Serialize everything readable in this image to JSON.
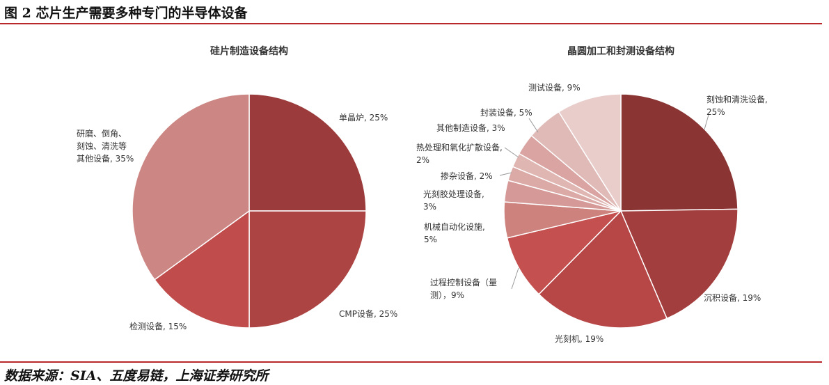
{
  "figure": {
    "title": "图 2 芯片生产需要多种专门的半导体设备",
    "source": "数据来源：SIA、五度易链，上海证券研究所"
  },
  "chart_data": [
    {
      "type": "pie",
      "title": "硅片制造设备结构",
      "slices": [
        {
          "label": [
            "单晶炉, 25%"
          ],
          "value": 25,
          "color": "#9b3b3b"
        },
        {
          "label": [
            "CMP设备, 25%"
          ],
          "value": 25,
          "color": "#ad4444"
        },
        {
          "label": [
            "检测设备, 15%"
          ],
          "value": 15,
          "color": "#c04c4c"
        },
        {
          "label": [
            "研磨、倒角、",
            "刻蚀、清洗等",
            "其他设备, 35%"
          ],
          "value": 35,
          "color": "#cc8784"
        }
      ]
    },
    {
      "type": "pie",
      "title": "晶圆加工和封测设备结构",
      "slices": [
        {
          "label": [
            "刻蚀和清洗设备,",
            "25%"
          ],
          "value": 25,
          "color": "#8b3434"
        },
        {
          "label": [
            "沉积设备, 19%"
          ],
          "value": 19,
          "color": "#a33e3e"
        },
        {
          "label": [
            "光刻机, 19%"
          ],
          "value": 19,
          "color": "#b74646"
        },
        {
          "label": [
            "过程控制设备（量",
            "测），9%"
          ],
          "value": 9,
          "color": "#c55050"
        },
        {
          "label": [
            "机械自动化设施,",
            "5%"
          ],
          "value": 5,
          "color": "#cd827e"
        },
        {
          "label": [
            "光刻胶处理设备,",
            "3%"
          ],
          "value": 3,
          "color": "#d59a97"
        },
        {
          "label": [
            "掺杂设备, 2%"
          ],
          "value": 2,
          "color": "#dba9a6"
        },
        {
          "label": [
            "热处理和氧化扩散设备,",
            "2%"
          ],
          "value": 2,
          "color": "#e0b6b3"
        },
        {
          "label": [
            "其他制造设备, 3%"
          ],
          "value": 3,
          "color": "#d9a4a1"
        },
        {
          "label": [
            "封装设备, 5%"
          ],
          "value": 5,
          "color": "#dfbab7"
        },
        {
          "label": [
            "测试设备, 9%"
          ],
          "value": 9,
          "color": "#e8cdcb"
        }
      ]
    }
  ]
}
